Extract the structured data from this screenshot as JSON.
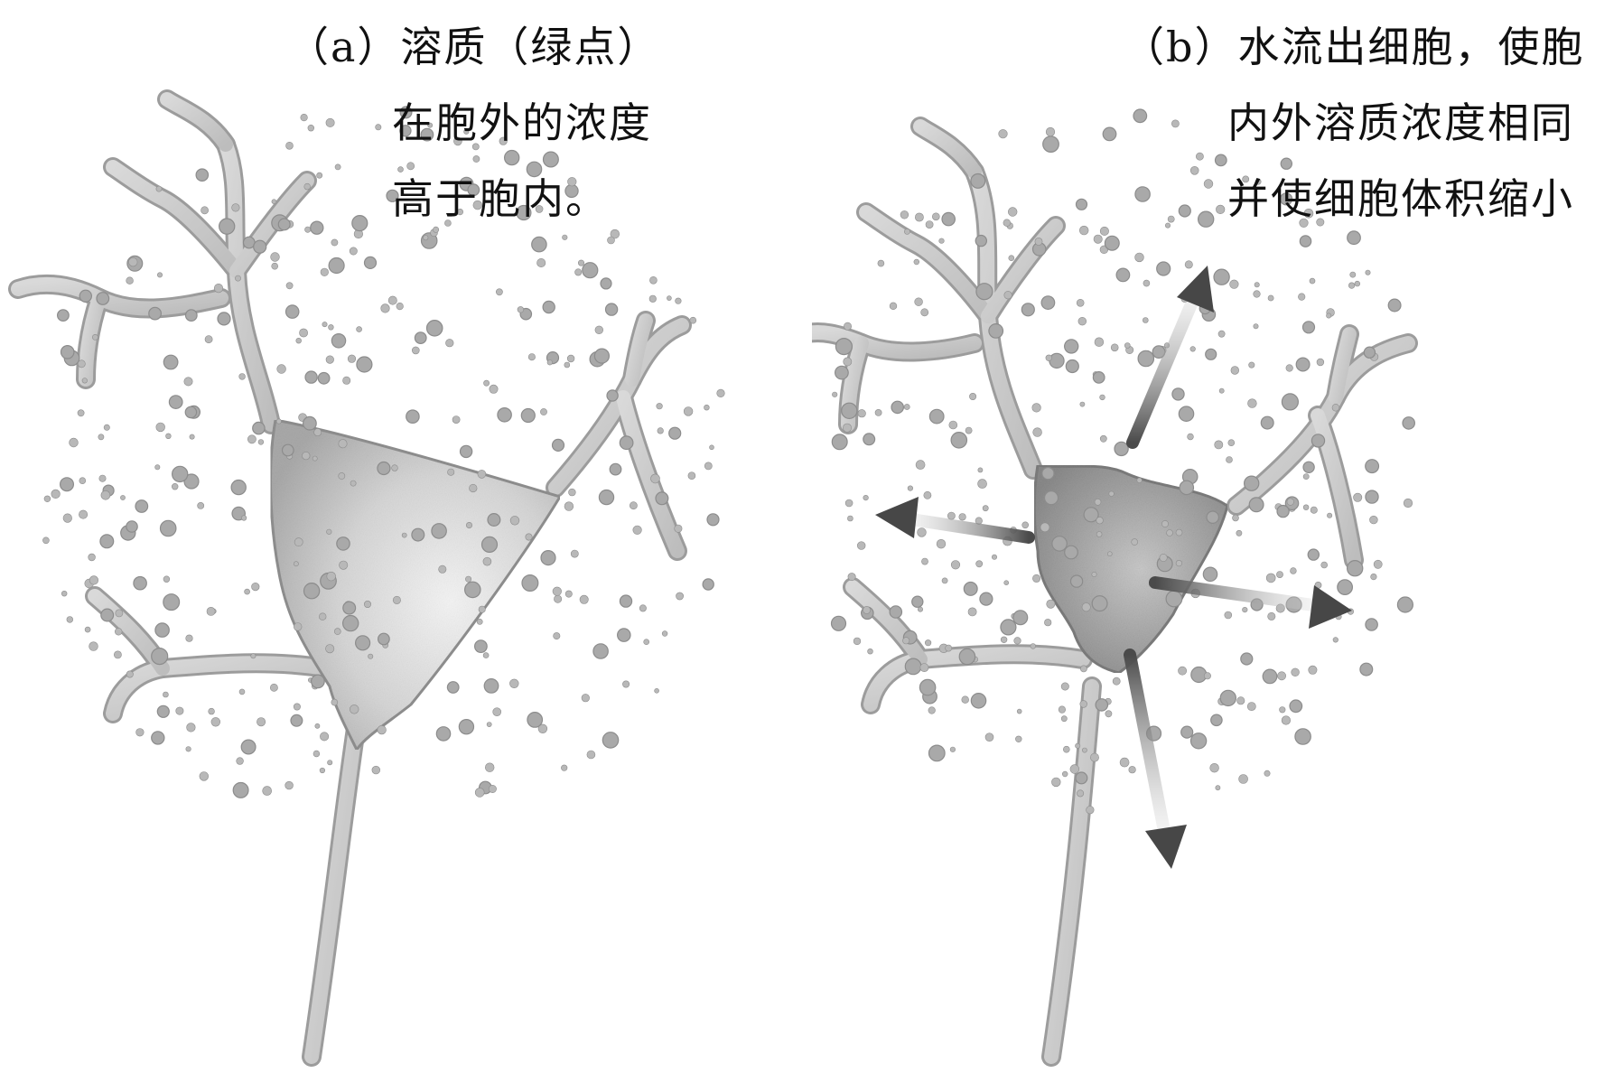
{
  "panel_a": {
    "caption_lines": [
      "（a）溶质（绿点）",
      "在胞外的浓度",
      "高于胞内。"
    ]
  },
  "panel_b": {
    "caption_lines": [
      "（b）水流出细胞，使胞",
      "内外溶质浓度相同",
      "并使细胞体积缩小"
    ]
  },
  "colors": {
    "caption_text": "#111111",
    "cell_fill": "#c9c9c9",
    "solute_dot": "#a8a8a8",
    "arrow": "#4a4a4a"
  },
  "icons": [
    "neuron-cell",
    "solute-dot",
    "water-outflow-arrow"
  ]
}
